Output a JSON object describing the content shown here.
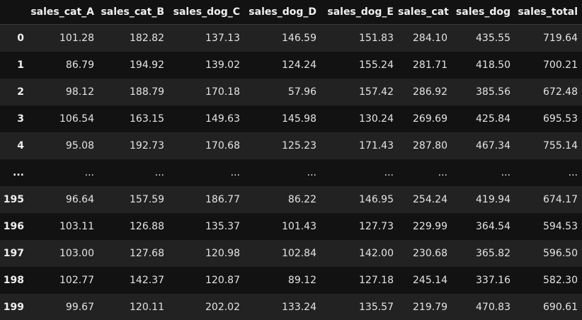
{
  "table": {
    "columns": [
      "",
      "sales_cat_A",
      "sales_cat_B",
      "sales_dog_C",
      "sales_dog_D",
      "sales_dog_E",
      "sales_cat",
      "sales_dog",
      "sales_total"
    ],
    "rows": [
      [
        "0",
        "101.28",
        "182.82",
        "137.13",
        "146.59",
        "151.83",
        "284.10",
        "435.55",
        "719.64"
      ],
      [
        "1",
        "86.79",
        "194.92",
        "139.02",
        "124.24",
        "155.24",
        "281.71",
        "418.50",
        "700.21"
      ],
      [
        "2",
        "98.12",
        "188.79",
        "170.18",
        "57.96",
        "157.42",
        "286.92",
        "385.56",
        "672.48"
      ],
      [
        "3",
        "106.54",
        "163.15",
        "149.63",
        "145.98",
        "130.24",
        "269.69",
        "425.84",
        "695.53"
      ],
      [
        "4",
        "95.08",
        "192.73",
        "170.68",
        "125.23",
        "171.43",
        "287.80",
        "467.34",
        "755.14"
      ],
      [
        "...",
        "...",
        "...",
        "...",
        "...",
        "...",
        "...",
        "...",
        "..."
      ],
      [
        "195",
        "96.64",
        "157.59",
        "186.77",
        "86.22",
        "146.95",
        "254.24",
        "419.94",
        "674.17"
      ],
      [
        "196",
        "103.11",
        "126.88",
        "135.37",
        "101.43",
        "127.73",
        "229.99",
        "364.54",
        "594.53"
      ],
      [
        "197",
        "103.00",
        "127.68",
        "120.98",
        "102.84",
        "142.00",
        "230.68",
        "365.82",
        "596.50"
      ],
      [
        "198",
        "102.77",
        "142.37",
        "120.87",
        "89.12",
        "127.18",
        "245.14",
        "337.16",
        "582.30"
      ],
      [
        "199",
        "99.67",
        "120.11",
        "202.02",
        "133.24",
        "135.57",
        "219.79",
        "470.83",
        "690.61"
      ]
    ]
  },
  "colors": {
    "background": "#121212",
    "stripe": "#222222",
    "text": "#e4e4e4"
  }
}
